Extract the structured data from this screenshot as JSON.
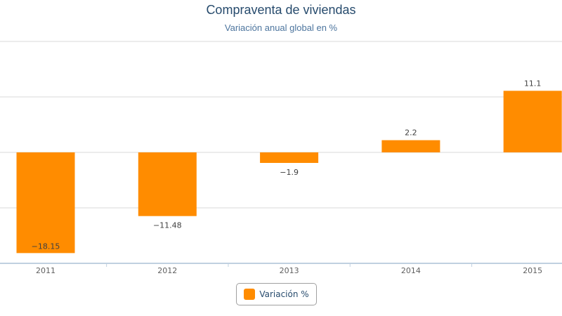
{
  "chart_data": {
    "type": "bar",
    "title": "Compraventa de viviendas",
    "subtitle": "Variación anual global en %",
    "categories": [
      "2011",
      "2012",
      "2013",
      "2014",
      "2015"
    ],
    "series": [
      {
        "name": "Variación %",
        "values": [
          -18.15,
          -11.48,
          -1.9,
          2.2,
          11.1
        ],
        "color": "#ff8c00"
      }
    ],
    "data_labels": [
      "−18.15",
      "−11.48",
      "−1.9",
      "2.2",
      "11.1"
    ],
    "ylim": [
      -20,
      20
    ],
    "grid": true,
    "legend_placement": "bottom-center"
  }
}
